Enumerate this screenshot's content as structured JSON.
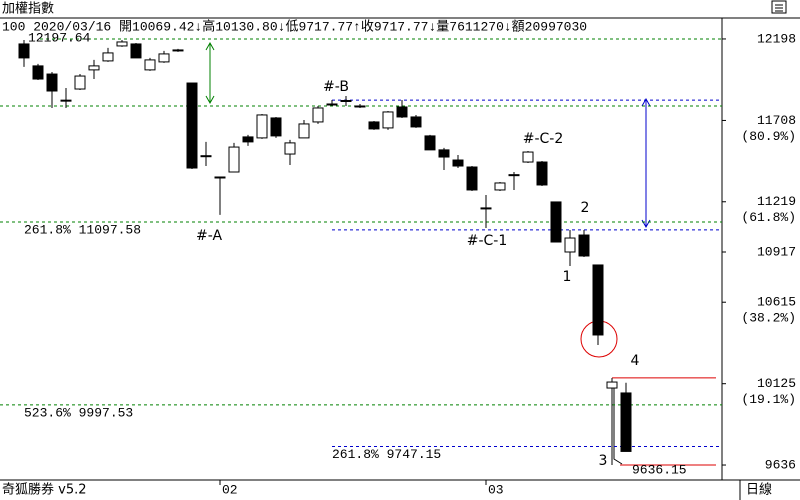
{
  "chart_data": {
    "type": "candlestick",
    "title": "加權指數",
    "info": "100 2020/03/16 開10069.42↓高10130.80↓低9717.77↑收9717.77↓量7611270↓額20997030",
    "footer_left": "奇狐勝券 v5.2",
    "footer_right": "日線",
    "categories": [
      null,
      null,
      null,
      null,
      null,
      null,
      null,
      null,
      null,
      null,
      null,
      null,
      null,
      null,
      "02",
      null,
      null,
      null,
      null,
      null,
      null,
      null,
      null,
      null,
      null,
      null,
      null,
      null,
      null,
      null,
      null,
      null,
      null,
      "03",
      null,
      null,
      null,
      null,
      null,
      null,
      null,
      null,
      null,
      null
    ],
    "open": [
      12168,
      12036,
      11987,
      11830,
      11897,
      12012,
      12066,
      12156,
      12168,
      12012,
      12060,
      12126,
      11933,
      11496,
      11362,
      11398,
      11609,
      11603,
      11723,
      11506,
      11603,
      11699,
      11802,
      11824,
      11795,
      11699,
      11663,
      11789,
      11729,
      11615,
      11531,
      11470,
      11428,
      11182,
      11290,
      11376,
      11458,
      11458,
      11218,
      10917,
      11019,
      10839,
      10099,
      10069.42
    ],
    "high": [
      12192,
      12048,
      11999,
      11903,
      11987,
      12072,
      12144,
      12192,
      12174,
      12084,
      12126,
      12138,
      11933,
      11579,
      11368,
      11573,
      11621,
      11747,
      11729,
      11591,
      11711,
      11795,
      11831,
      11855,
      11807,
      11705,
      11765,
      11831,
      11741,
      11621,
      11543,
      11500,
      11434,
      11260,
      11338,
      11398,
      11524,
      11464,
      11218,
      11049,
      11049,
      10839,
      10159,
      10130.8
    ],
    "low": [
      12030,
      11951,
      11783,
      11783,
      11891,
      11957,
      12060,
      12150,
      12084,
      12006,
      12054,
      12120,
      11416,
      11434,
      11140,
      11398,
      11555,
      11597,
      11603,
      11440,
      11603,
      11687,
      11795,
      11795,
      11783,
      11651,
      11651,
      11723,
      11663,
      11531,
      11410,
      11422,
      11284,
      11061,
      11284,
      11290,
      11452,
      11314,
      10977,
      10833,
      10887,
      10358,
      9636.15,
      9717.77
    ],
    "close": [
      12084,
      11957,
      11885,
      11826,
      11975,
      12036,
      12114,
      12180,
      12084,
      12072,
      12108,
      12132,
      11422,
      11490,
      11368,
      11548,
      11579,
      11741,
      11615,
      11573,
      11687,
      11783,
      11807,
      11828,
      11790,
      11657,
      11759,
      11729,
      11669,
      11531,
      11488,
      11434,
      11290,
      11176,
      11332,
      11382,
      11518,
      11320,
      10977,
      11001,
      10893,
      10418,
      10135,
      9717.77
    ],
    "up_color": "#ffffff",
    "down_color": "#000000",
    "ylim": [
      9564,
      12324
    ],
    "yticks": [
      12198,
      11708,
      11219,
      10917,
      10615,
      10125,
      9636
    ],
    "ytick_notes": [
      {
        "value": 11708,
        "label": "(80.9%)"
      },
      {
        "value": 11219,
        "label": "(61.8%)"
      },
      {
        "value": 10615,
        "label": "(38.2%)"
      },
      {
        "value": 10125,
        "label": "(19.1%)"
      }
    ],
    "levels": [
      {
        "value": 12197.64,
        "color": "#008000",
        "label": "12197.64"
      },
      {
        "value": 11795,
        "color": "#008000"
      },
      {
        "value": 11097.58,
        "color": "#008000",
        "label": "261.8% 11097.58"
      },
      {
        "value": 9997.53,
        "color": "#008000",
        "label": "523.6% 9997.53"
      },
      {
        "value": 11830,
        "color": "#0000cc"
      },
      {
        "value": 11050,
        "color": "#0000cc"
      },
      {
        "value": 9747.15,
        "color": "#0000cc",
        "label": "261.8% 9747.15"
      },
      {
        "value": 10160,
        "color": "#dd0000"
      },
      {
        "value": 9636.15,
        "color": "#dd0000",
        "label": "9636.15"
      }
    ],
    "annotations": [
      "#-A",
      "#-B",
      "#-C-1",
      "#-C-2",
      "1",
      "2",
      "3",
      "4"
    ]
  }
}
